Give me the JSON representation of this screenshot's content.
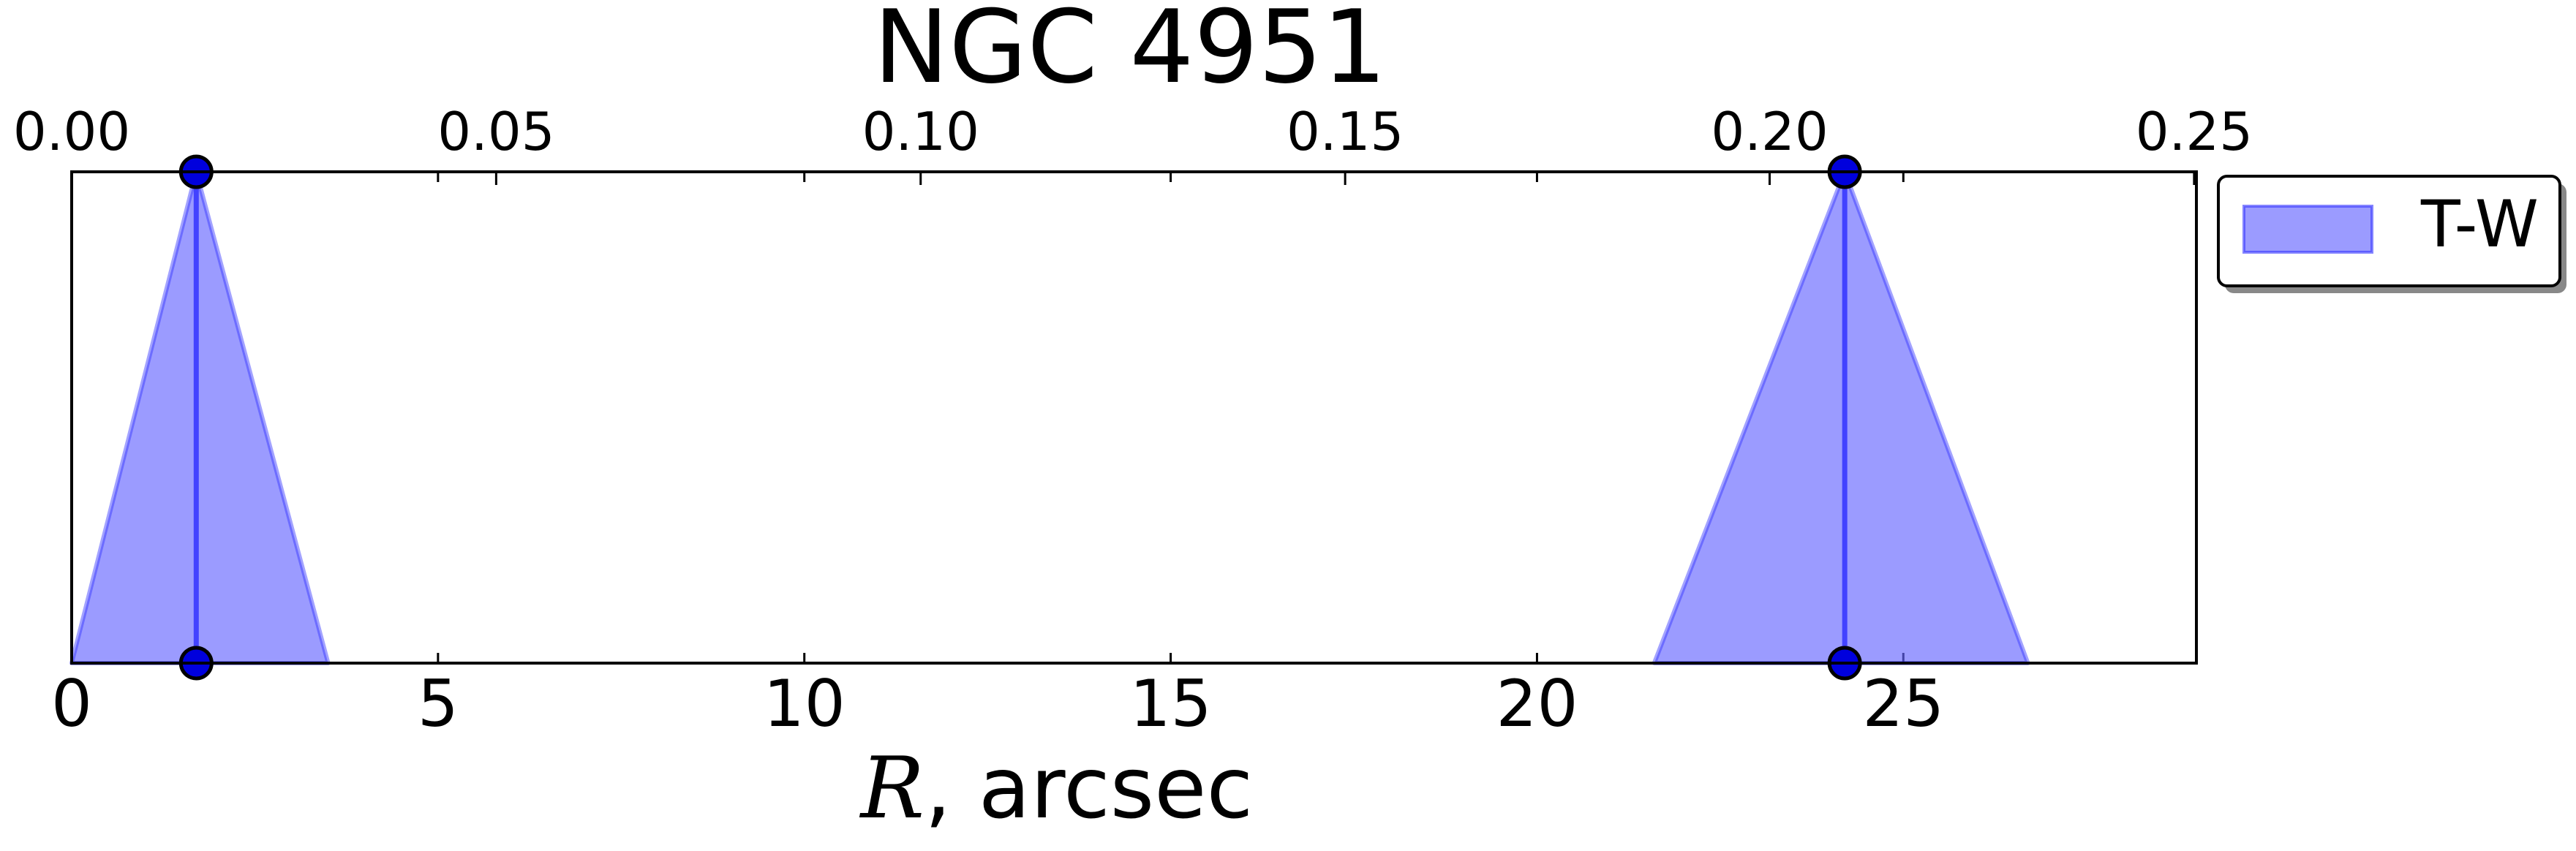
{
  "chart_data": {
    "type": "area",
    "title": "NGC 4951",
    "xlabel_var": "R",
    "xlabel_rest": ", arcsec",
    "xlim": [
      0,
      29
    ],
    "ylim": [
      0,
      1
    ],
    "x_ticks": [
      "0",
      "5",
      "10",
      "15",
      "20",
      "25"
    ],
    "x_tick_values": [
      0,
      5,
      10,
      15,
      20,
      25
    ],
    "top_axis_ticks": [
      "0.00",
      "0.05",
      "0.10",
      "0.15",
      "0.20",
      "0.25"
    ],
    "top_axis_tick_values": [
      0.0,
      0.05,
      0.1,
      0.15,
      0.2,
      0.25
    ],
    "top_axis_scale": 0.00863,
    "grid": false,
    "legend_position": "outside-right-top",
    "series": [
      {
        "name": "T-W",
        "color": "#6666ff",
        "line_color": "#3333ff",
        "marker_color": "#0000dd",
        "features": [
          {
            "center": 1.7,
            "left": 0.0,
            "right": 3.5
          },
          {
            "center": 24.2,
            "left": 21.6,
            "right": 26.7
          }
        ]
      }
    ]
  }
}
